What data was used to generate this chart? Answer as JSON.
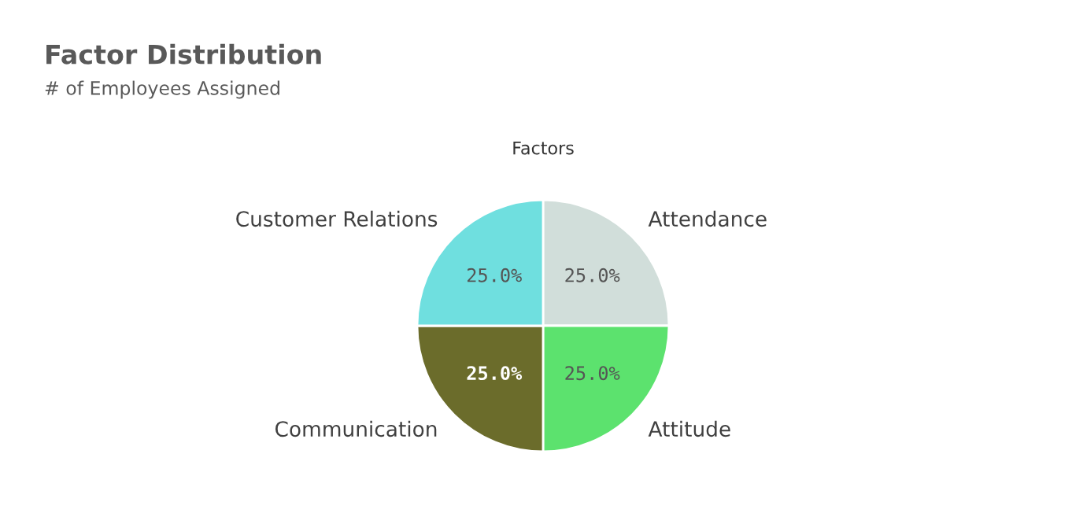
{
  "chart_data": {
    "type": "pie",
    "title": "Factor Distribution",
    "subtitle": "# of Employees Assigned",
    "annotations": [
      "Factors"
    ],
    "categories": [
      "Attendance",
      "Attitude",
      "Communication",
      "Customer Relations"
    ],
    "values": [
      25,
      25,
      25,
      25
    ],
    "colors": [
      "#d1deda",
      "#5ce26e",
      "#6b6c2b",
      "#6fdfdf"
    ],
    "value_labels": [
      "25.0%",
      "25.0%",
      "25.0%",
      "25.0%"
    ],
    "legend": false
  }
}
